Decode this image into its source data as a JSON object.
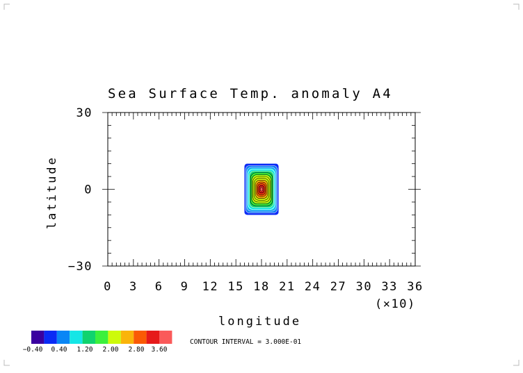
{
  "chart_data": {
    "type": "heatmap",
    "title": "Sea Surface Temp. anomaly A4",
    "xlabel": "longitude",
    "ylabel": "latitude",
    "x_multiplier_label": "(×10)",
    "xlim": [
      0,
      360
    ],
    "ylim": [
      -30,
      30
    ],
    "x_tick_labels": [
      "0",
      "3",
      "6",
      "9",
      "12",
      "15",
      "18",
      "21",
      "24",
      "27",
      "30",
      "33",
      "36"
    ],
    "y_tick_labels": [
      "30",
      "0",
      "−30"
    ],
    "anomaly_region": {
      "lon_range": [
        160,
        200
      ],
      "lat_range": [
        -10,
        10
      ],
      "center": [
        180,
        0
      ],
      "max_value": 3.6
    },
    "contour_interval_text": "CONTOUR INTERVAL = 3.000E-01",
    "colorbar": {
      "colors": [
        "#3a00a0",
        "#0a2bf5",
        "#0a86f5",
        "#15e6e6",
        "#10d36e",
        "#3cf03c",
        "#cdfa0a",
        "#fab40a",
        "#fa5a05",
        "#e61a1a",
        "#fa5a5a"
      ],
      "labels": [
        "−0.40",
        "0.40",
        "1.20",
        "2.00",
        "2.80",
        "3.60"
      ]
    }
  }
}
